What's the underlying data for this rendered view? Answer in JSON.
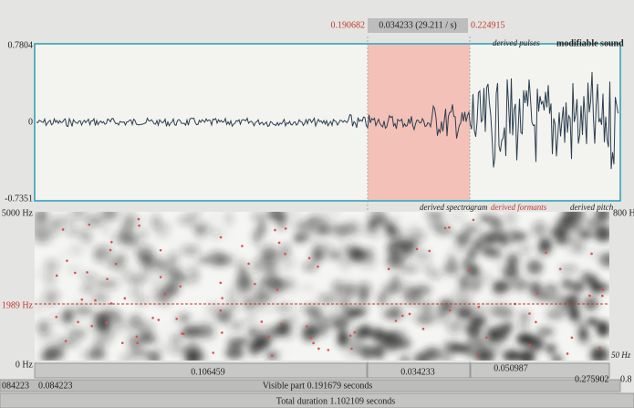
{
  "selection": {
    "start": "0.190682",
    "length": "0.034233 (29.211 / s)",
    "end": "0.224915"
  },
  "waveform": {
    "max": "0.7804",
    "zero": "0",
    "min": "-0.7351",
    "legend": [
      "derived pulses",
      "modifiable sound"
    ]
  },
  "spectrogram": {
    "top": "5000 Hz",
    "cursor": "1989 Hz",
    "bottom": "0 Hz",
    "right_top": "800 H",
    "right_bottom": "50 Hz",
    "legend": [
      "derived spectrogram",
      "derived formants",
      "derived pitch"
    ]
  },
  "time_bar": {
    "segments": [
      "0.106459",
      "0.034233",
      "0.050987"
    ],
    "window_start_cut": "084223",
    "window_start": "0.084223",
    "visible": "Visible part 0.191679 seconds",
    "window_end": "0.275902",
    "total_end_cut": "0.8",
    "total": "Total duration 1.102109 seconds"
  }
}
